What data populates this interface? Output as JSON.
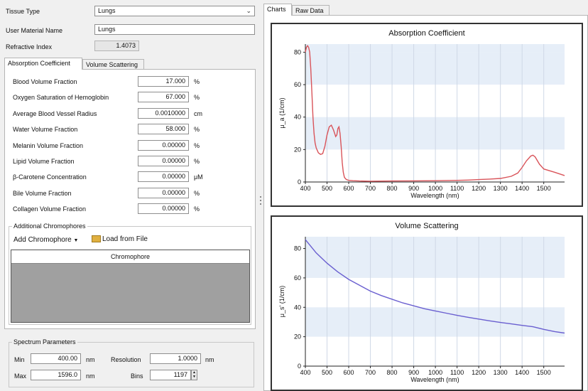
{
  "tissue": {
    "type_label": "Tissue Type",
    "type_value": "Lungs",
    "user_label": "User Material Name",
    "user_value": "Lungs",
    "ri_label": "Refractive Index",
    "ri_value": "1.4073"
  },
  "left_tabs": [
    "Absorption Coefficient",
    "Volume Scattering"
  ],
  "params": [
    {
      "label": "Blood Volume Fraction",
      "value": "17.000",
      "unit": "%"
    },
    {
      "label": "Oxygen Saturation of Hemoglobin",
      "value": "67.000",
      "unit": "%"
    },
    {
      "label": "Average Blood Vessel Radius",
      "value": "0.0010000",
      "unit": "cm"
    },
    {
      "label": "Water Volume Fraction",
      "value": "58.000",
      "unit": "%"
    },
    {
      "label": "Melanin Volume Fraction",
      "value": "0.00000",
      "unit": "%"
    },
    {
      "label": "Lipid Volume Fraction",
      "value": "0.00000",
      "unit": "%"
    },
    {
      "label": "β-Carotene Concentration",
      "value": "0.00000",
      "unit": "μM"
    },
    {
      "label": "Bile Volume Fraction",
      "value": "0.00000",
      "unit": "%"
    },
    {
      "label": "Collagen Volume Fraction",
      "value": "0.00000",
      "unit": "%"
    }
  ],
  "chromophores": {
    "group_title": "Additional Chromophores",
    "add_label": "Add Chromophore",
    "load_label": "Load from File",
    "column_header": "Chromophore"
  },
  "spectrum": {
    "group_title": "Spectrum Parameters",
    "min_label": "Min",
    "min_value": "400.00",
    "min_unit": "nm",
    "max_label": "Max",
    "max_value": "1596.0",
    "max_unit": "nm",
    "res_label": "Resolution",
    "res_value": "1.0000",
    "res_unit": "nm",
    "bins_label": "Bins",
    "bins_value": "1197"
  },
  "right_tabs": [
    "Charts",
    "Raw Data"
  ],
  "chart_data": [
    {
      "type": "line",
      "title": "Absorption Coefficient",
      "xlabel": "Wavelength (nm)",
      "ylabel": "μ_a (1/cm)",
      "xlim": [
        400,
        1596
      ],
      "ylim": [
        0,
        85
      ],
      "xticks": [
        400,
        500,
        600,
        700,
        800,
        900,
        1000,
        1100,
        1200,
        1300,
        1400,
        1500
      ],
      "yticks": [
        0,
        20,
        40,
        60,
        80
      ],
      "color": "#d9545a",
      "series": [
        {
          "x": [
            400,
            405,
            410,
            415,
            420,
            425,
            430,
            435,
            440,
            445,
            450,
            460,
            470,
            480,
            490,
            500,
            510,
            520,
            530,
            540,
            545,
            550,
            555,
            560,
            565,
            570,
            575,
            580,
            585,
            590,
            600,
            620,
            650,
            700,
            800,
            900,
            1000,
            1100,
            1150,
            1200,
            1250,
            1300,
            1350,
            1380,
            1400,
            1420,
            1440,
            1450,
            1460,
            1480,
            1500,
            1550,
            1596
          ],
          "y": [
            80,
            83,
            84,
            83,
            80,
            70,
            55,
            40,
            30,
            24,
            21,
            18,
            17,
            17.5,
            22,
            29,
            34,
            35,
            32,
            28,
            29,
            33,
            34,
            30,
            22,
            12,
            6,
            3,
            2,
            1.5,
            1,
            0.8,
            0.6,
            0.5,
            0.6,
            0.7,
            0.8,
            1.0,
            1.2,
            1.5,
            1.8,
            2.2,
            3.5,
            5.5,
            9,
            13,
            16,
            16.5,
            15.5,
            11,
            8,
            6,
            4
          ]
        }
      ]
    },
    {
      "type": "line",
      "title": "Volume Scattering",
      "xlabel": "Wavelength (nm)",
      "ylabel": "μ_s' (1/cm)",
      "xlim": [
        400,
        1596
      ],
      "ylim": [
        0,
        88
      ],
      "xticks": [
        400,
        500,
        600,
        700,
        800,
        900,
        1000,
        1100,
        1200,
        1300,
        1400,
        1500
      ],
      "yticks": [
        0,
        20,
        40,
        60,
        80
      ],
      "color": "#6a5fd0",
      "series": [
        {
          "x": [
            400,
            450,
            500,
            550,
            600,
            650,
            700,
            750,
            800,
            850,
            900,
            950,
            1000,
            1050,
            1100,
            1150,
            1200,
            1250,
            1300,
            1350,
            1400,
            1450,
            1500,
            1550,
            1596
          ],
          "y": [
            86,
            77,
            70,
            64,
            59,
            55,
            51,
            48,
            45.5,
            43,
            41,
            39,
            37.5,
            36,
            34.5,
            33.2,
            32,
            30.8,
            29.7,
            28.7,
            27.7,
            26.8,
            25,
            23.5,
            22.5
          ]
        }
      ]
    }
  ]
}
